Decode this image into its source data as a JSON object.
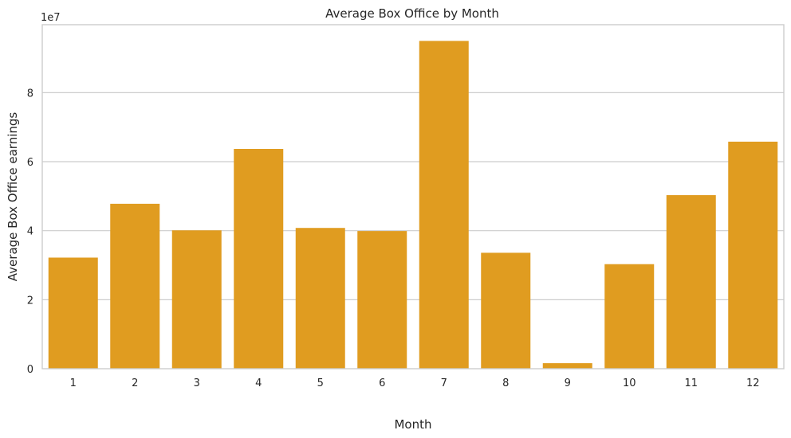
{
  "chart_data": {
    "type": "bar",
    "title": "Average Box Office by Month",
    "xlabel": "Month",
    "ylabel": "Average Box Office earnings",
    "scale_label": "1e7",
    "categories": [
      "1",
      "2",
      "3",
      "4",
      "5",
      "6",
      "7",
      "8",
      "9",
      "10",
      "11",
      "12"
    ],
    "values": [
      32200000,
      47800000,
      40100000,
      63700000,
      40800000,
      39900000,
      95000000,
      33600000,
      1600000,
      30300000,
      50300000,
      65800000
    ],
    "ylim": [
      0,
      99700000
    ],
    "yticks": [
      0,
      20000000,
      40000000,
      60000000,
      80000000
    ],
    "ytick_labels": [
      "0",
      "2",
      "4",
      "6",
      "8"
    ],
    "grid": true,
    "bar_color": "#e09c20"
  }
}
